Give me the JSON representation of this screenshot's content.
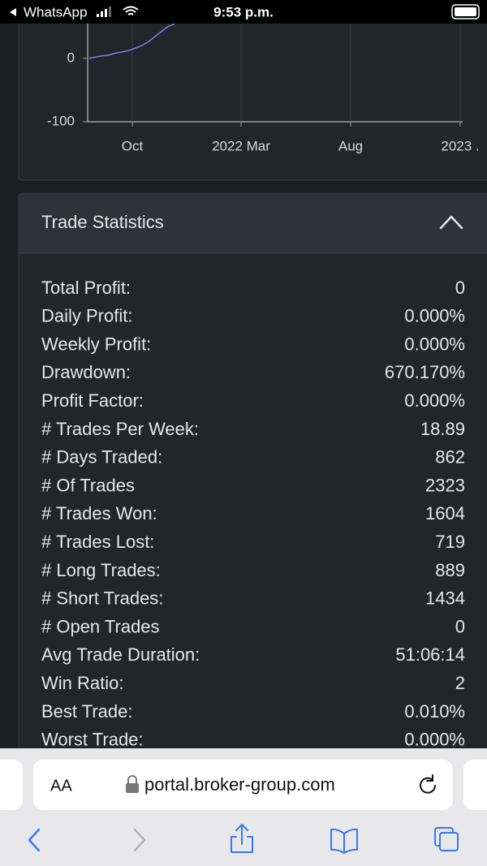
{
  "status_bar": {
    "back_app": "WhatsApp",
    "time": "9:53 p.m."
  },
  "chart": {
    "type": "line",
    "ylim": [
      -100,
      56
    ],
    "yticks": [
      0,
      -100
    ],
    "xticks": [
      "Oct",
      "2022 Mar",
      "Aug",
      "2023 ."
    ],
    "series": [
      {
        "color": "#8b7fe0",
        "values": [
          0,
          2,
          4,
          5,
          8,
          10,
          12,
          16,
          20,
          26,
          34,
          42,
          50,
          54
        ]
      }
    ]
  },
  "panel": {
    "title": "Trade Statistics",
    "rows": [
      [
        "Total Profit:",
        "0"
      ],
      [
        "Daily Profit:",
        "0.000%"
      ],
      [
        "Weekly Profit:",
        "0.000%"
      ],
      [
        "Drawdown:",
        "670.170%"
      ],
      [
        "Profit Factor:",
        "0.000%"
      ],
      [
        "# Trades Per Week:",
        "18.89"
      ],
      [
        "# Days Traded:",
        "862"
      ],
      [
        "# Of Trades",
        "2323"
      ],
      [
        "# Trades Won:",
        "1604"
      ],
      [
        "# Trades Lost:",
        "719"
      ],
      [
        "# Long Trades:",
        "889"
      ],
      [
        "# Short Trades:",
        "1434"
      ],
      [
        "# Open Trades",
        "0"
      ],
      [
        "Avg Trade Duration:",
        "51:06:14"
      ],
      [
        "Win Ratio:",
        "2"
      ],
      [
        "Best Trade:",
        "0.010%"
      ],
      [
        "Worst Trade:",
        "0.000%"
      ]
    ]
  },
  "browser": {
    "text_size": "AA",
    "url": "portal.broker-group.com"
  }
}
